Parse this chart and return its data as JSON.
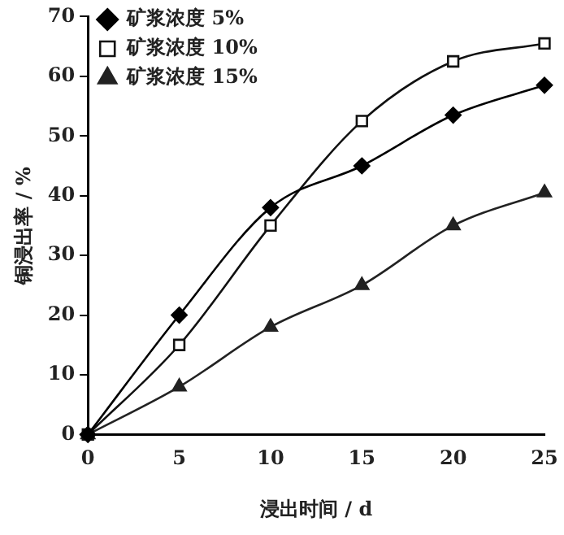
{
  "chart_data": {
    "type": "line",
    "xlabel": "浸出时间 / d",
    "ylabel": "铜浸出率 / %",
    "x": [
      0,
      5,
      10,
      15,
      20,
      25
    ],
    "series": [
      {
        "name": "矿浆浓度 5%",
        "color": "#000000",
        "marker": "diamond",
        "values": [
          0,
          20,
          38,
          45,
          53.5,
          58.5
        ]
      },
      {
        "name": "矿浆浓度 10%",
        "color": "#111111",
        "marker": "square",
        "values": [
          0,
          15,
          35,
          52.5,
          62.5,
          65.5
        ]
      },
      {
        "name": "矿浆浓度 15%",
        "color": "#222222",
        "marker": "triangle",
        "values": [
          0,
          8,
          18,
          25,
          35,
          40.5
        ]
      }
    ],
    "xlim": [
      0,
      25
    ],
    "xticks": [
      0,
      5,
      10,
      15,
      20,
      25
    ],
    "ylim": [
      0,
      70
    ],
    "yticks": [
      0,
      10,
      20,
      30,
      40,
      50,
      60,
      70
    ],
    "grid": false,
    "legend": "top left",
    "line_style": "solid"
  }
}
